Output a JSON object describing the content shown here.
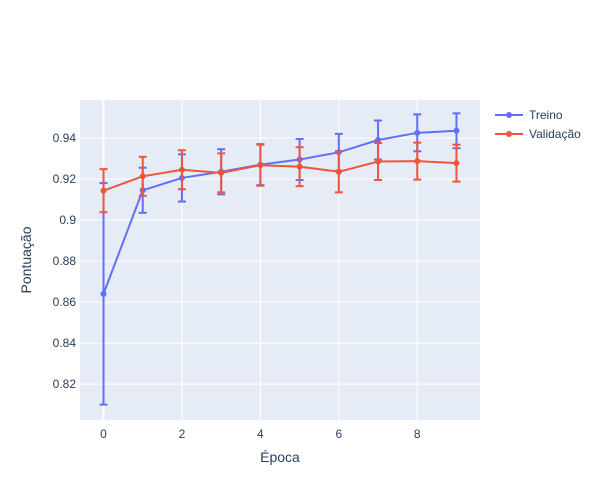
{
  "chart_data": {
    "type": "line",
    "x": [
      0,
      1,
      2,
      3,
      4,
      5,
      6,
      7,
      8,
      9
    ],
    "xlabel": "Época",
    "ylabel": "Pontuação",
    "xlim": [
      -0.6,
      9.6
    ],
    "ylim": [
      0.8025,
      0.9585
    ],
    "x_ticks": [
      0,
      2,
      4,
      6,
      8
    ],
    "y_ticks": [
      0.82,
      0.84,
      0.86,
      0.88,
      0.9,
      0.92,
      0.94
    ],
    "y_tick_labels": [
      "0.82",
      "0.84",
      "0.86",
      "0.88",
      "0.9",
      "0.92",
      "0.94"
    ],
    "grid": true,
    "legend_position": "top-right",
    "series": [
      {
        "name": "Treino",
        "color": "#636efa",
        "values": [
          0.864,
          0.9145,
          0.9205,
          0.9235,
          0.927,
          0.9295,
          0.933,
          0.939,
          0.9425,
          0.9435
        ],
        "error": [
          0.054,
          0.011,
          0.0115,
          0.011,
          0.01,
          0.01,
          0.009,
          0.0095,
          0.009,
          0.0085
        ]
      },
      {
        "name": "Validação",
        "color": "#ef553b",
        "values": [
          0.9143,
          0.9213,
          0.9245,
          0.923,
          0.9267,
          0.926,
          0.9235,
          0.9285,
          0.9287,
          0.9277
        ],
        "error": [
          0.0105,
          0.0095,
          0.0095,
          0.0095,
          0.01,
          0.0095,
          0.01,
          0.009,
          0.009,
          0.009
        ]
      }
    ]
  }
}
